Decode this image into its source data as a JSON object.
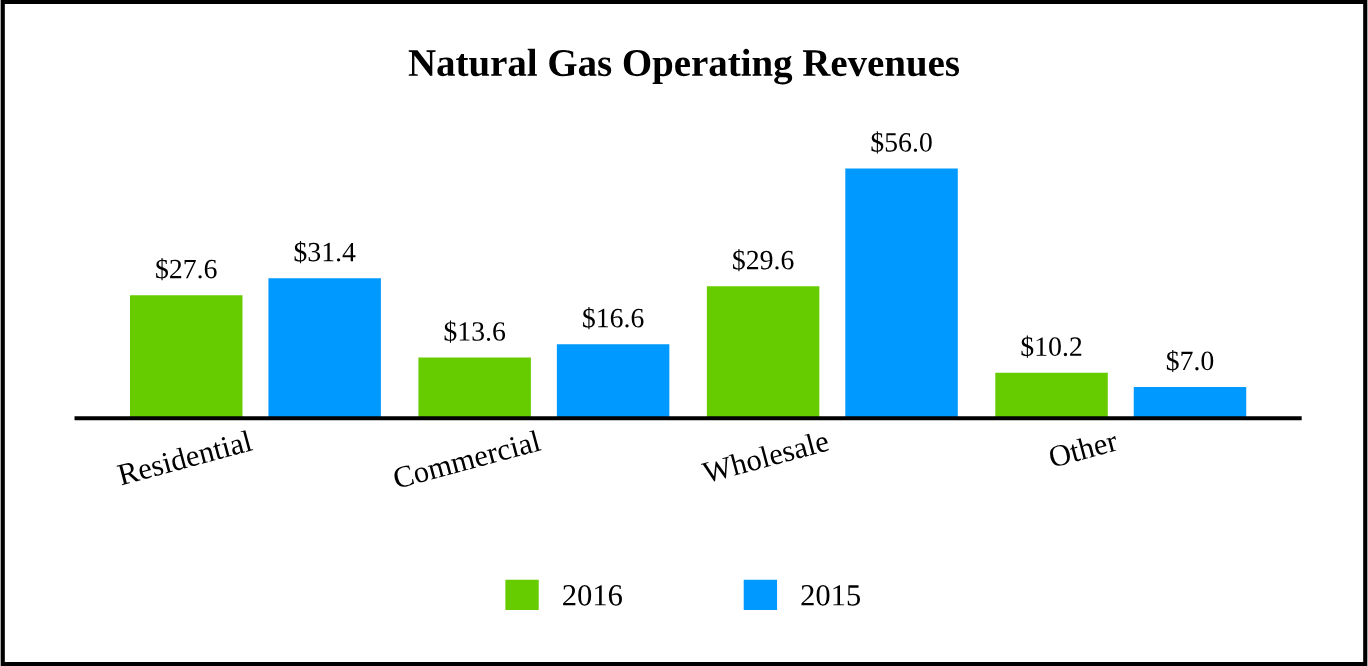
{
  "chart_data": {
    "type": "bar",
    "title": "Natural Gas Operating Revenues",
    "categories": [
      "Residential",
      "Commercial",
      "Wholesale",
      "Other"
    ],
    "series": [
      {
        "name": "2016",
        "color": "#66cc00",
        "values": [
          27.6,
          13.6,
          29.6,
          10.2
        ],
        "value_labels": [
          "$27.6",
          "$13.6",
          "$29.6",
          "$10.2"
        ]
      },
      {
        "name": "2015",
        "color": "#0099ff",
        "values": [
          31.4,
          16.6,
          56.0,
          7.0
        ],
        "value_labels": [
          "$31.4",
          "$16.6",
          "$56.0",
          "$7.0"
        ]
      }
    ],
    "legend": "bottom",
    "grid": false,
    "tick_labels": "x"
  }
}
